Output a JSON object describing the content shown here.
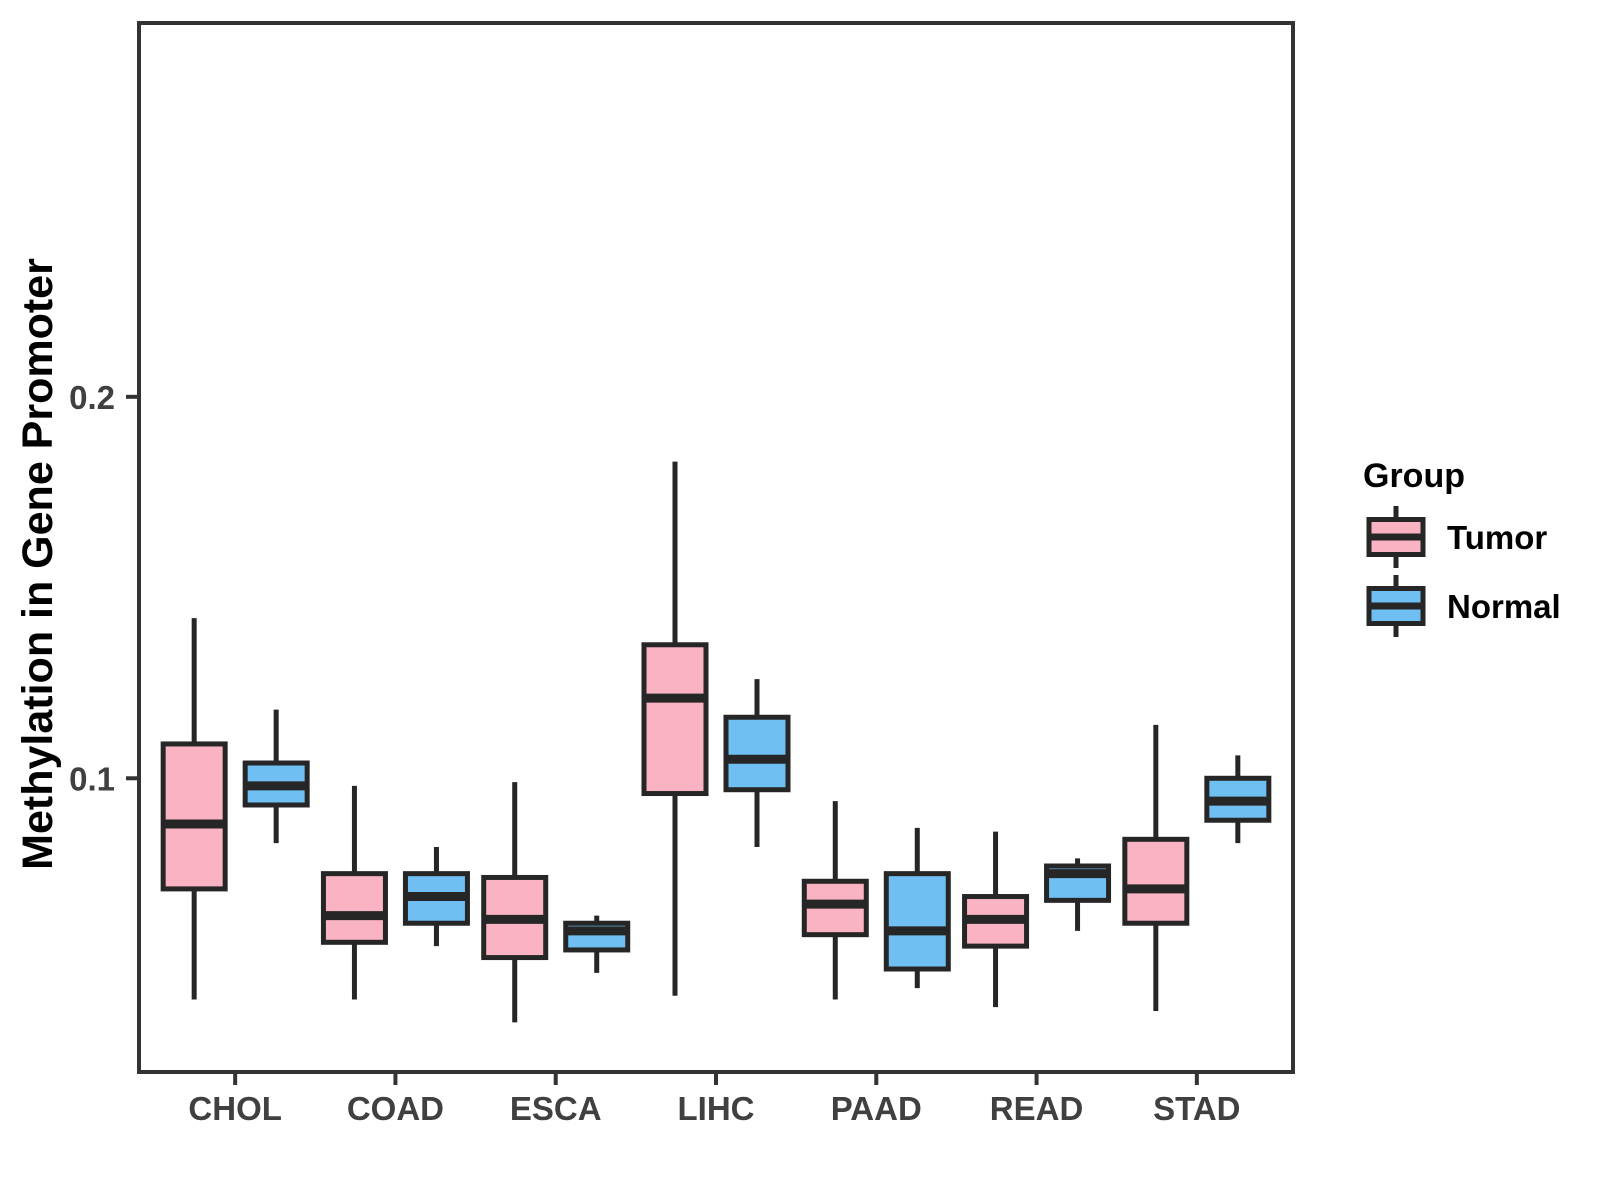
{
  "chart_data": {
    "type": "boxplot",
    "title": "",
    "xlabel": "",
    "ylabel": "Methylation in Gene Promoter",
    "legend_title": "Group",
    "legend_position": "right",
    "grid": false,
    "categories": [
      "CHOL",
      "COAD",
      "ESCA",
      "LIHC",
      "PAAD",
      "READ",
      "STAD"
    ],
    "ylim": [
      0.023,
      0.298
    ],
    "yticks": [
      {
        "value": 0.1,
        "label": "0.1"
      },
      {
        "value": 0.2,
        "label": "0.2"
      }
    ],
    "groups": [
      {
        "name": "Tumor",
        "fill": "#FAB3C2"
      },
      {
        "name": "Normal",
        "fill": "#70BFF2"
      }
    ],
    "series": [
      {
        "group": "Tumor",
        "boxes": [
          {
            "category": "CHOL",
            "whisker_low": 0.042,
            "q1": 0.071,
            "median": 0.088,
            "q3": 0.109,
            "whisker_high": 0.142
          },
          {
            "category": "COAD",
            "whisker_low": 0.042,
            "q1": 0.057,
            "median": 0.064,
            "q3": 0.075,
            "whisker_high": 0.098
          },
          {
            "category": "ESCA",
            "whisker_low": 0.036,
            "q1": 0.053,
            "median": 0.063,
            "q3": 0.074,
            "whisker_high": 0.099
          },
          {
            "category": "LIHC",
            "whisker_low": 0.043,
            "q1": 0.096,
            "median": 0.121,
            "q3": 0.135,
            "whisker_high": 0.183
          },
          {
            "category": "PAAD",
            "whisker_low": 0.042,
            "q1": 0.059,
            "median": 0.067,
            "q3": 0.073,
            "whisker_high": 0.094
          },
          {
            "category": "READ",
            "whisker_low": 0.04,
            "q1": 0.056,
            "median": 0.063,
            "q3": 0.069,
            "whisker_high": 0.086
          },
          {
            "category": "STAD",
            "whisker_low": 0.039,
            "q1": 0.062,
            "median": 0.071,
            "q3": 0.084,
            "whisker_high": 0.114
          }
        ]
      },
      {
        "group": "Normal",
        "boxes": [
          {
            "category": "CHOL",
            "whisker_low": 0.083,
            "q1": 0.093,
            "median": 0.098,
            "q3": 0.104,
            "whisker_high": 0.118
          },
          {
            "category": "COAD",
            "whisker_low": 0.056,
            "q1": 0.062,
            "median": 0.069,
            "q3": 0.075,
            "whisker_high": 0.082
          },
          {
            "category": "ESCA",
            "whisker_low": 0.049,
            "q1": 0.055,
            "median": 0.06,
            "q3": 0.062,
            "whisker_high": 0.064
          },
          {
            "category": "LIHC",
            "whisker_low": 0.082,
            "q1": 0.097,
            "median": 0.105,
            "q3": 0.116,
            "whisker_high": 0.126
          },
          {
            "category": "PAAD",
            "whisker_low": 0.045,
            "q1": 0.05,
            "median": 0.06,
            "q3": 0.075,
            "whisker_high": 0.087
          },
          {
            "category": "READ",
            "whisker_low": 0.06,
            "q1": 0.068,
            "median": 0.075,
            "q3": 0.077,
            "whisker_high": 0.079
          },
          {
            "category": "STAD",
            "whisker_low": 0.083,
            "q1": 0.089,
            "median": 0.094,
            "q3": 0.1,
            "whisker_high": 0.106
          }
        ]
      }
    ],
    "colors": {
      "background": "#FFFFFF",
      "box_border": "#262626",
      "axis": "#333333",
      "tick_label": "#404040",
      "axis_title": "#000000",
      "legend_text": "#000000"
    }
  }
}
